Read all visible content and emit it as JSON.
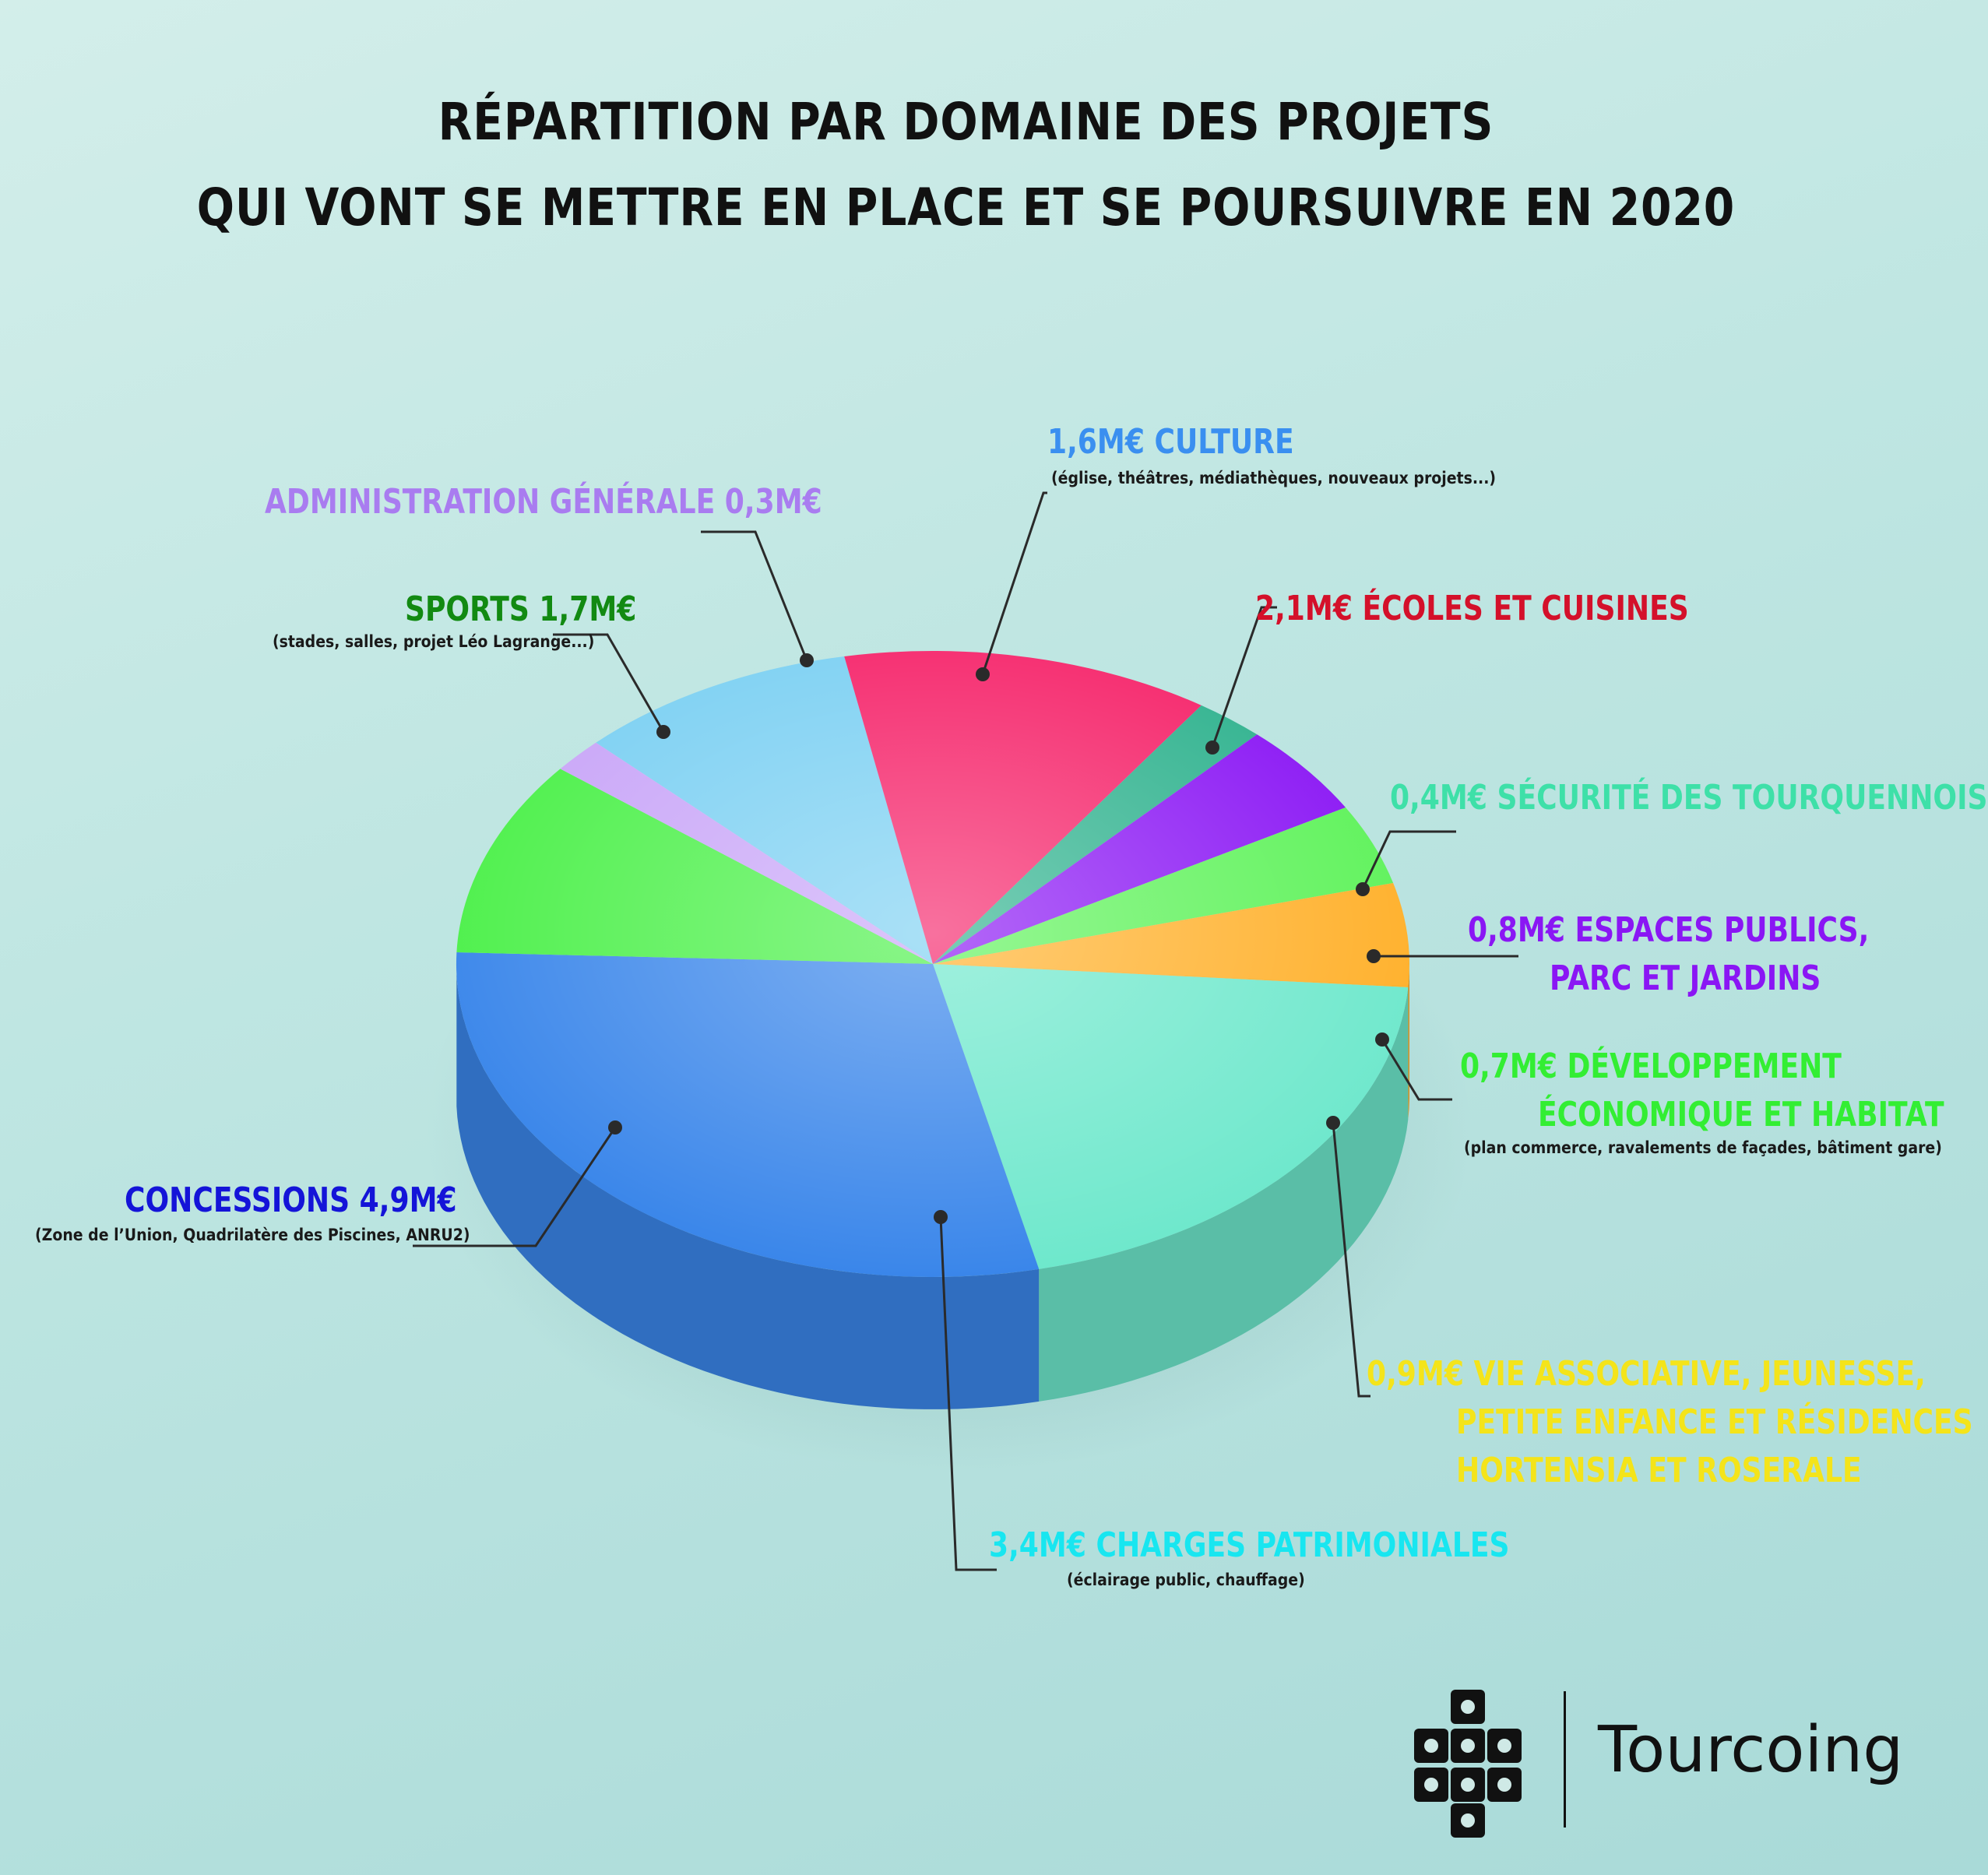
{
  "title": {
    "line1": "RÉPARTITION PAR DOMAINE DES PROJETS",
    "line2": "QUI VONT SE METTRE EN PLACE ET SE POURSUIVRE EN 2020"
  },
  "chart_data": {
    "type": "pie",
    "unit": "M€",
    "slices": [
      {
        "id": "culture",
        "value": 1.6,
        "color": "#7cd0f2",
        "labels": [
          "1,6M€ CULTURE"
        ],
        "labelColor": "#3a8ff0",
        "note": "(église, théâtres, médiathèques, nouveaux projets...)"
      },
      {
        "id": "ecoles",
        "value": 2.1,
        "color": "#f5246a",
        "labels": [
          "2,1M€ ÉCOLES ET CUISINES"
        ],
        "labelColor": "#d4102a",
        "note": ""
      },
      {
        "id": "securite",
        "value": 0.4,
        "color": "#2fb28e",
        "labels": [
          "0,4M€ SÉCURITÉ DES TOURQUENNOIS"
        ],
        "labelColor": "#3ee0a8",
        "note": ""
      },
      {
        "id": "espaces",
        "value": 0.8,
        "color": "#8a16f4",
        "labels": [
          "0,8M€ ESPACES PUBLICS,",
          "PARC ET JARDINS"
        ],
        "labelColor": "#8a16f4",
        "note": ""
      },
      {
        "id": "developpement",
        "value": 0.7,
        "color": "#5ef25a",
        "labels": [
          "0,7M€ DÉVELOPPEMENT",
          "ÉCONOMIQUE ET HABITAT"
        ],
        "labelColor": "#33ee33",
        "note": "(plan commerce, ravalements de façades, bâtiment gare)"
      },
      {
        "id": "vie-associative",
        "value": 0.9,
        "color": "#ffb02a",
        "labels": [
          "0,9M€ VIE ASSOCIATIVE, JEUNESSE,",
          "PETITE ENFANCE ET RÉSIDENCES",
          "HORTENSIA ET ROSERALE"
        ],
        "labelColor": "#f4e41a",
        "note": ""
      },
      {
        "id": "charges",
        "value": 3.4,
        "color": "#6ee8cc",
        "labels": [
          "3,4M€ CHARGES PATRIMONIALES"
        ],
        "labelColor": "#18e6f0",
        "note": "(éclairage public, chauffage)"
      },
      {
        "id": "concessions",
        "value": 4.9,
        "color": "#3a86ea",
        "labels": [
          "CONCESSIONS 4,9M€"
        ],
        "labelColor": "#1414d8",
        "note": "(Zone de l’Union, Quadrilatère des Piscines, ANRU2)"
      },
      {
        "id": "sports",
        "value": 1.7,
        "color": "#4cf04a",
        "labels": [
          "SPORTS 1,7M€"
        ],
        "labelColor": "#128a12",
        "note": "(stades, salles, projet Léo Lagrange...)"
      },
      {
        "id": "administration",
        "value": 0.3,
        "color": "#c9a6f8",
        "labels": [
          "ADMINISTRATION GÉNÉRALE 0,3M€"
        ],
        "labelColor": "#a97cf0",
        "note": ""
      }
    ]
  },
  "logo": {
    "name": "Tourcoing"
  }
}
